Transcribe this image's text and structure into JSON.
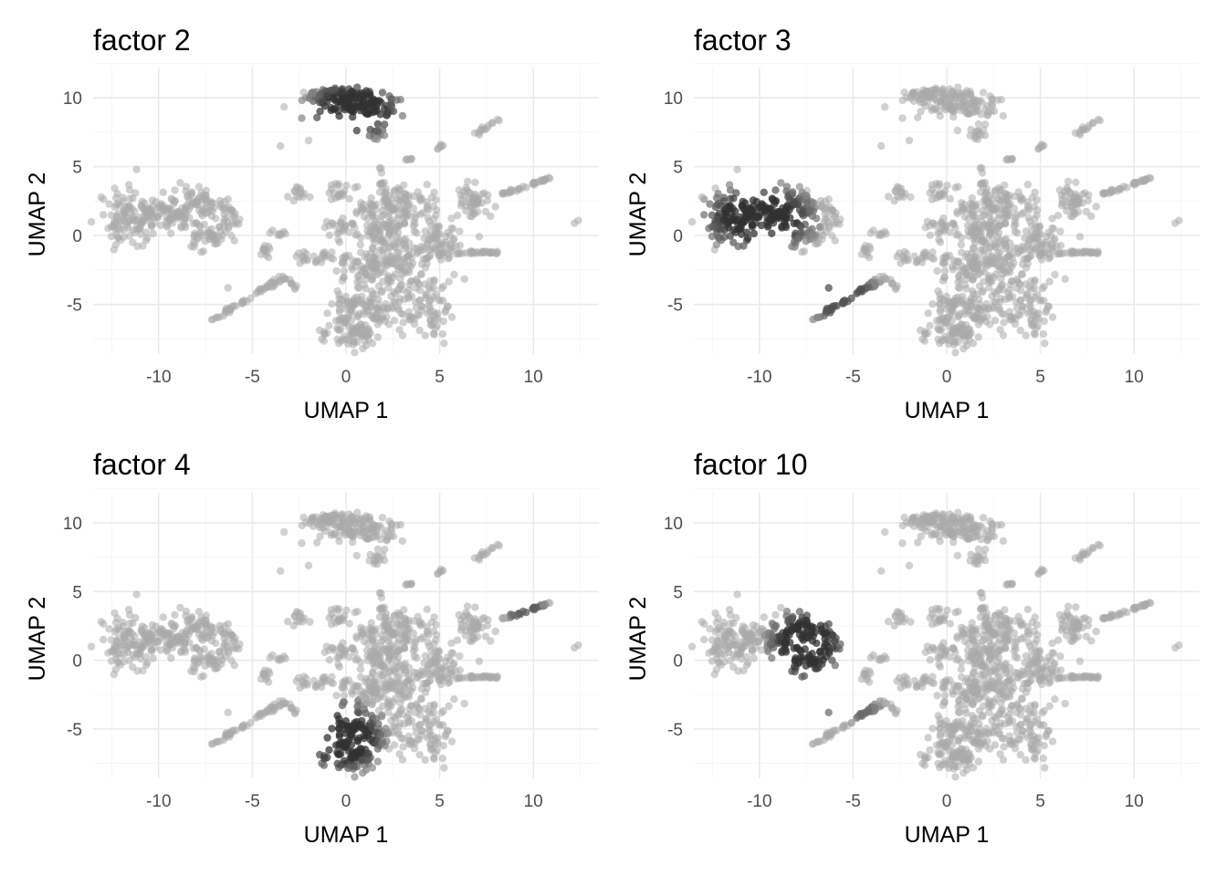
{
  "chart_data": [
    {
      "type": "scatter",
      "title": "factor  2",
      "xlabel": "UMAP 1",
      "ylabel": "UMAP 2",
      "xlim": [
        -13.5,
        13.5
      ],
      "ylim": [
        -8.6,
        12.2
      ],
      "xticks": [
        -10,
        -5,
        0,
        5,
        10
      ],
      "yticks": [
        -5,
        0,
        5,
        10
      ],
      "grid": true,
      "highlight": [
        {
          "region": "top-cluster",
          "x": [
            -2.2,
            3.0
          ],
          "y": [
            7.0,
            11.2
          ],
          "intensity": 0.95
        }
      ]
    },
    {
      "type": "scatter",
      "title": "factor  3",
      "xlabel": "UMAP 1",
      "ylabel": "UMAP 2",
      "xlim": [
        -13.5,
        13.5
      ],
      "ylim": [
        -8.6,
        12.2
      ],
      "xticks": [
        -10,
        -5,
        0,
        5,
        10
      ],
      "yticks": [
        -5,
        0,
        5,
        10
      ],
      "grid": true,
      "highlight": [
        {
          "region": "left-cluster",
          "x": [
            -13.0,
            -7.0
          ],
          "y": [
            -1.2,
            3.8
          ],
          "intensity": 0.95
        },
        {
          "region": "left-tail",
          "x": [
            -7.6,
            -3.5
          ],
          "y": [
            -6.4,
            -2.5
          ],
          "intensity": 0.7
        }
      ]
    },
    {
      "type": "scatter",
      "title": "factor  4",
      "xlabel": "UMAP 1",
      "ylabel": "UMAP 2",
      "xlim": [
        -13.5,
        13.5
      ],
      "ylim": [
        -8.6,
        12.2
      ],
      "xticks": [
        -10,
        -5,
        0,
        5,
        10
      ],
      "yticks": [
        -5,
        0,
        5,
        10
      ],
      "grid": true,
      "highlight": [
        {
          "region": "bottom-lobe",
          "x": [
            -2.2,
            2.0
          ],
          "y": [
            -8.2,
            -3.0
          ],
          "intensity": 0.95
        },
        {
          "region": "right-streak",
          "x": [
            8.2,
            11.0
          ],
          "y": [
            3.0,
            4.2
          ],
          "intensity": 0.6
        }
      ]
    },
    {
      "type": "scatter",
      "title": "factor  10",
      "xlabel": "UMAP 1",
      "ylabel": "UMAP 2",
      "xlim": [
        -13.5,
        13.5
      ],
      "ylim": [
        -8.6,
        12.2
      ],
      "xticks": [
        -10,
        -5,
        0,
        5,
        10
      ],
      "yticks": [
        -5,
        0,
        5,
        10
      ],
      "grid": true,
      "highlight": [
        {
          "region": "left-cluster-right-half",
          "x": [
            -9.5,
            -5.5
          ],
          "y": [
            -1.5,
            3.8
          ],
          "intensity": 0.95
        },
        {
          "region": "left-tail",
          "x": [
            -7.0,
            -3.5
          ],
          "y": [
            -4.5,
            -2.5
          ],
          "intensity": 0.5
        }
      ]
    }
  ],
  "colors": {
    "base_points": "#a9a9a9",
    "high_points": "#2b2b2b",
    "grid": "#ebebeb",
    "tick_text": "#4d4d4d"
  }
}
